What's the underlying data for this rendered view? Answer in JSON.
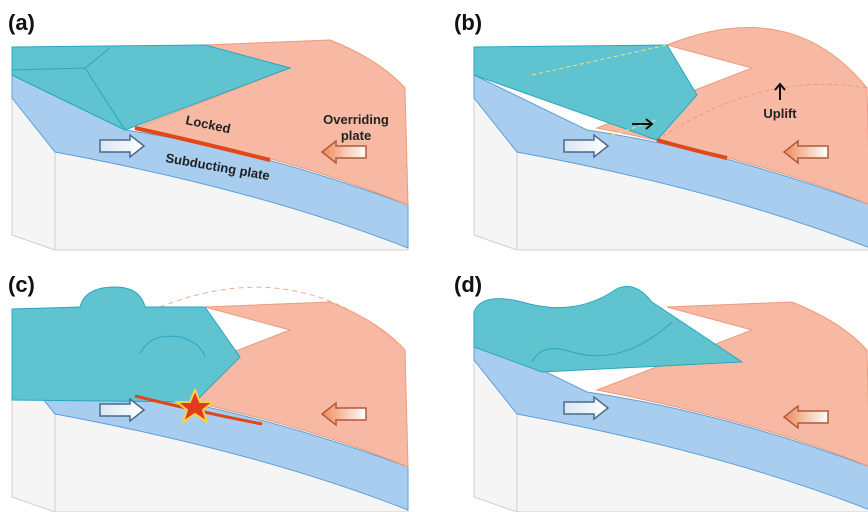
{
  "panels": [
    {
      "label": "(a)",
      "locked": "Locked",
      "overriding": [
        "Overriding",
        "plate"
      ],
      "subducting": "Subducting plate"
    },
    {
      "label": "(b)",
      "uplift": "Uplift"
    },
    {
      "label": "(c)"
    },
    {
      "label": "(d)"
    }
  ]
}
